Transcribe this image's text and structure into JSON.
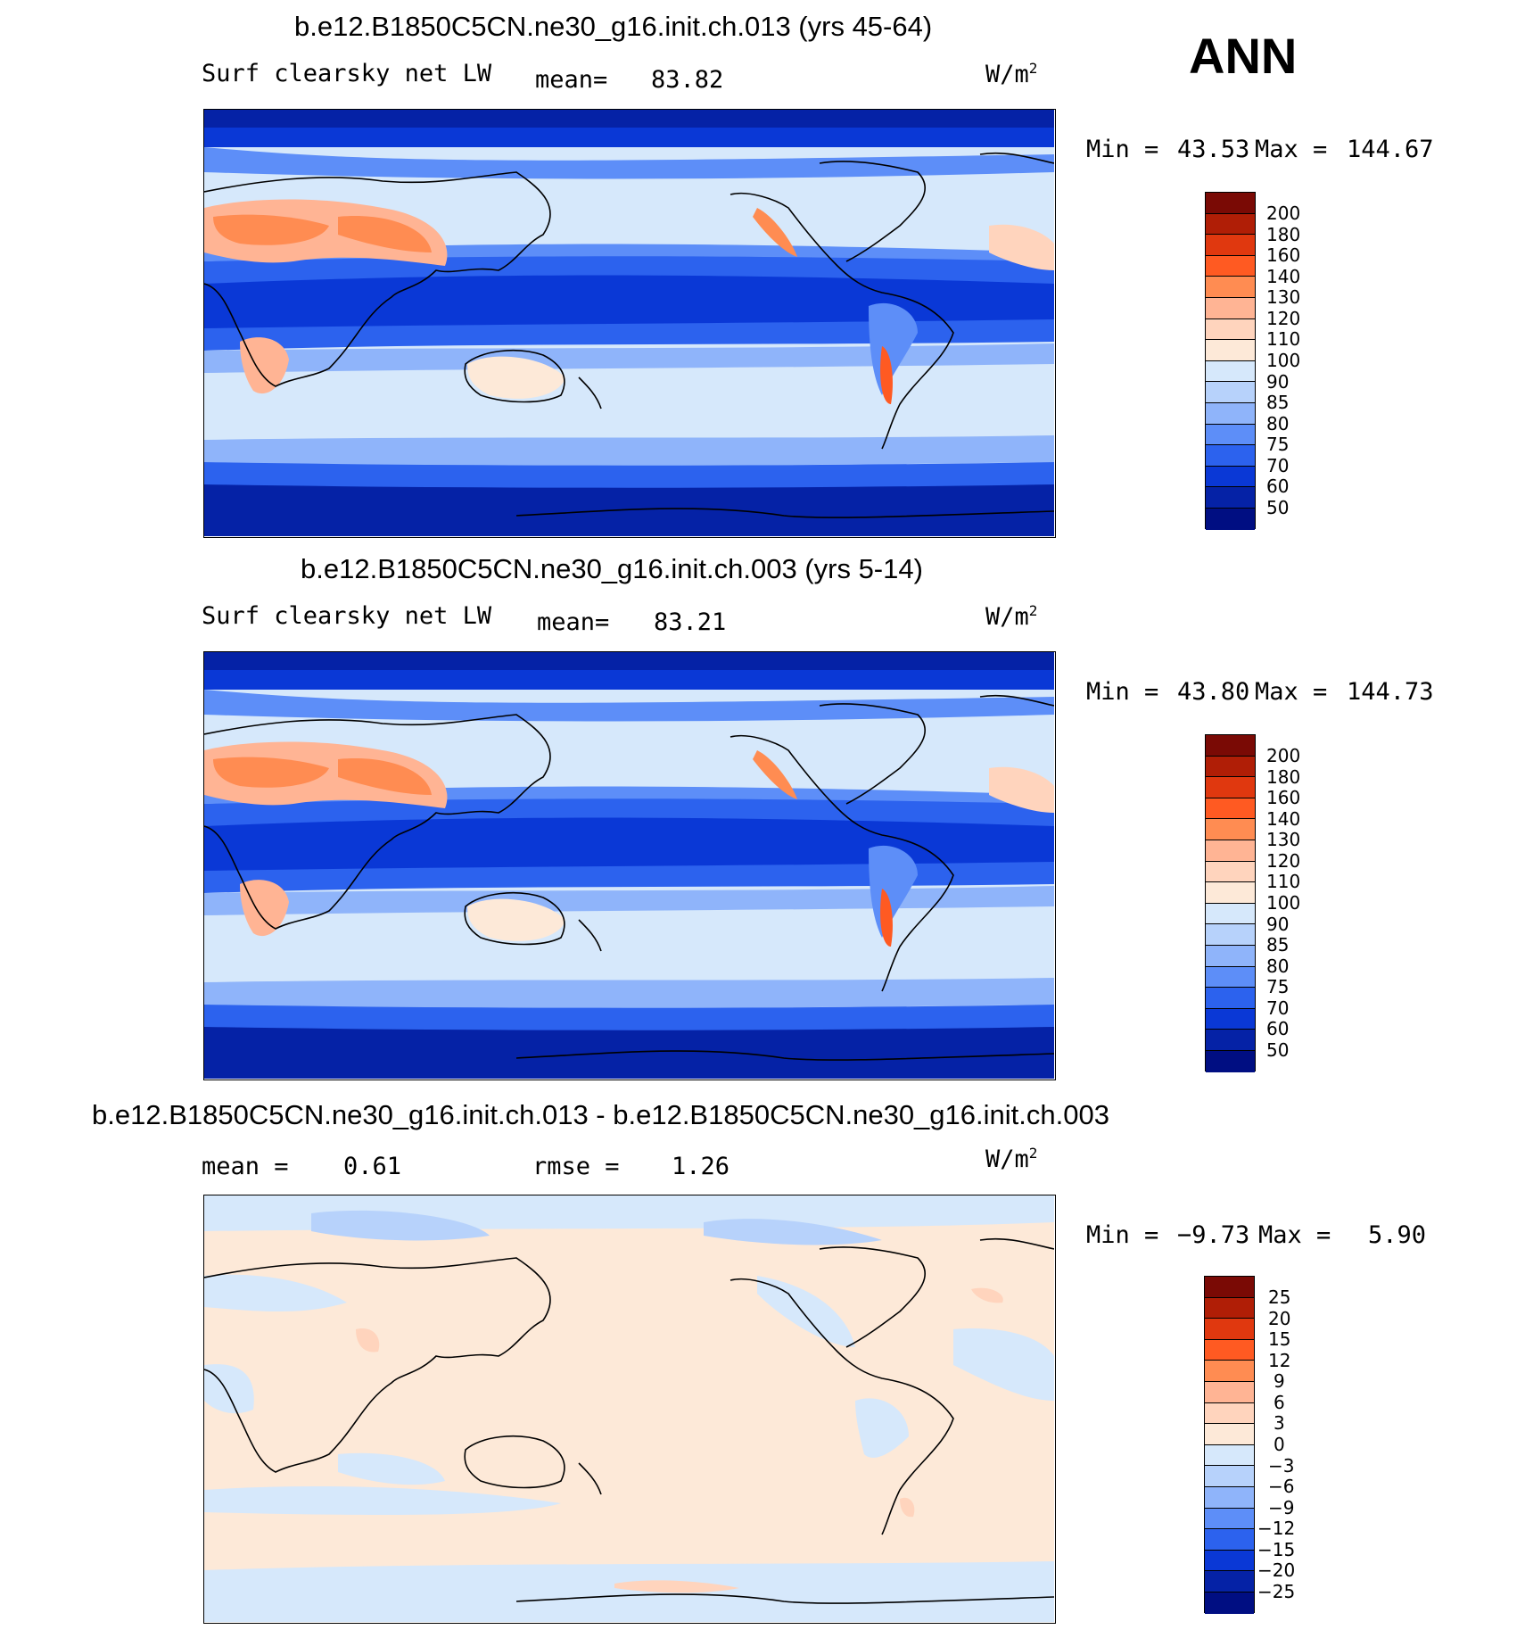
{
  "season": "ANN",
  "panels": [
    {
      "title": "b.e12.B1850C5CN.ne30_g16.init.ch.013 (yrs 45-64)",
      "left_label": "Surf clearsky net LW",
      "stat_label": "mean=",
      "stat_value": "83.82",
      "stat2_label": "",
      "stat2_value": "",
      "units": "W/m",
      "units_exp": "2",
      "min_label": "Min =",
      "min_value": "43.53",
      "max_label": "Max =",
      "max_value": "144.67",
      "levels": [
        "200",
        "180",
        "160",
        "140",
        "130",
        "120",
        "110",
        "100",
        "90",
        "85",
        "80",
        "75",
        "70",
        "60",
        "50"
      ]
    },
    {
      "title": "b.e12.B1850C5CN.ne30_g16.init.ch.003 (yrs 5-14)",
      "left_label": "Surf clearsky net LW",
      "stat_label": "mean=",
      "stat_value": "83.21",
      "stat2_label": "",
      "stat2_value": "",
      "units": "W/m",
      "units_exp": "2",
      "min_label": "Min =",
      "min_value": "43.80",
      "max_label": "Max =",
      "max_value": "144.73",
      "levels": [
        "200",
        "180",
        "160",
        "140",
        "130",
        "120",
        "110",
        "100",
        "90",
        "85",
        "80",
        "75",
        "70",
        "60",
        "50"
      ]
    },
    {
      "title": "b.e12.B1850C5CN.ne30_g16.init.ch.013 - b.e12.B1850C5CN.ne30_g16.init.ch.003",
      "left_label": "",
      "stat_label": "mean =",
      "stat_value": "0.61",
      "stat2_label": "rmse =",
      "stat2_value": "1.26",
      "units": "W/m",
      "units_exp": "2",
      "min_label": "Min =",
      "min_value": "−9.73",
      "max_label": "Max =",
      "max_value": "5.90",
      "levels": [
        "25",
        "20",
        "15",
        "12",
        "9",
        "6",
        "3",
        "0",
        "−3",
        "−6",
        "−9",
        "−12",
        "−15",
        "−20",
        "−25"
      ]
    }
  ],
  "colors": {
    "scale": [
      "#7a0a05",
      "#b01e06",
      "#e0380f",
      "#ff5a22",
      "#ff8c52",
      "#ffb494",
      "#ffd4bd",
      "#fde9d8",
      "#d6e8fb",
      "#b7d2fb",
      "#8fb4fa",
      "#5d8ef8",
      "#2c62ee",
      "#0a38d6",
      "#0522a6",
      "#000e82"
    ],
    "ocean_base": "#d6e8fb",
    "diff_base": "#fde9d8"
  }
}
